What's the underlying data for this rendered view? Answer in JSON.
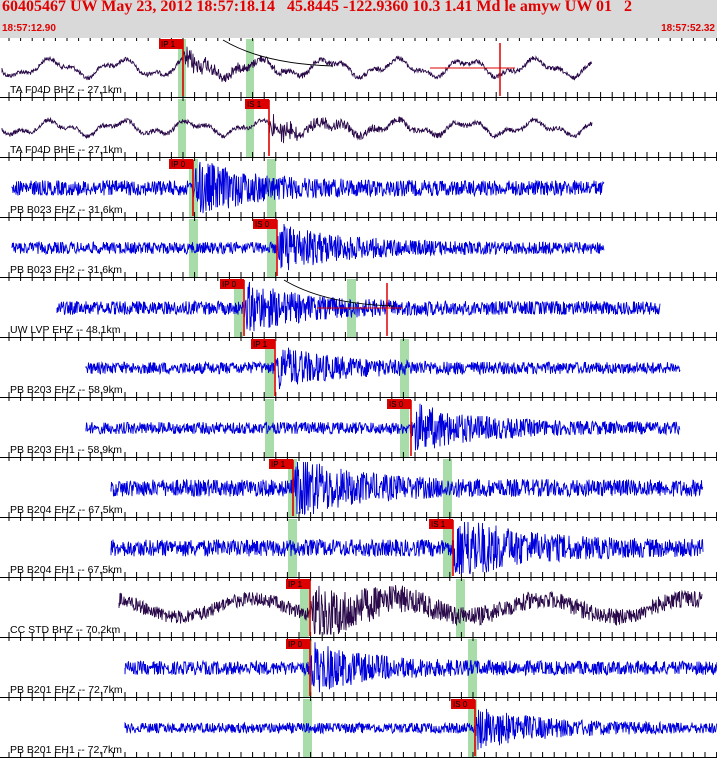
{
  "header": {
    "title": "60405467 UW May 23, 2012 18:57:18.14   45.8445 -122.9360 10.3 1.41 Md le amyw UW 01   2",
    "start_time": "18:57:12.90",
    "end_time": "18:57:52.32"
  },
  "colors": {
    "header_bg": "#d9d9d9",
    "header_text": "#e00000",
    "waveform_blue": "#0000dd",
    "waveform_dark": "#2a0a4a",
    "pick_marker": "#dd0000",
    "phase_window": "#a8dca8",
    "gridline": "#000000"
  },
  "chart_data": {
    "type": "seismogram",
    "time_axis": {
      "start": "18:57:12.90",
      "end": "18:57:52.32",
      "tick_interval_s": 0.5
    },
    "traces": [
      {
        "label": "TA F04D BHZ -- 27,1km",
        "color": "dark",
        "pick": "IP 1",
        "pick_type": "P",
        "has_coda_curve": true
      },
      {
        "label": "TA F04D BHE -- 27,1km",
        "color": "dark",
        "pick": "IS 1",
        "pick_type": "S"
      },
      {
        "label": "PB B023 EHZ -- 31,6km",
        "color": "blue",
        "pick": "IP 0",
        "pick_type": "P"
      },
      {
        "label": "PB B023 EH2 -- 31,6km",
        "color": "blue",
        "pick": "IS 0",
        "pick_type": "S"
      },
      {
        "label": "UW LVP EHZ -- 48,1km",
        "color": "blue",
        "pick": "IP 0",
        "pick_type": "P",
        "has_coda_curve": true
      },
      {
        "label": "PB B203 EHZ -- 58,9km",
        "color": "blue",
        "pick": "IP 1",
        "pick_type": "P"
      },
      {
        "label": "PB B203 EH1 -- 58,9km",
        "color": "blue",
        "pick": "IS 0",
        "pick_type": "S"
      },
      {
        "label": "PB B204 EHZ -- 67,5km",
        "color": "blue",
        "pick": "IP 1",
        "pick_type": "P"
      },
      {
        "label": "PB B204 EH1 -- 67,5km",
        "color": "blue",
        "pick": "IS 1",
        "pick_type": "S"
      },
      {
        "label": "CC STD BHZ -- 70,2km",
        "color": "dark",
        "pick": "IP 1",
        "pick_type": "P"
      },
      {
        "label": "PB B201 EHZ -- 72,7km",
        "color": "blue",
        "pick": "IP 0",
        "pick_type": "P"
      },
      {
        "label": "PB B201 EH1 -- 72,7km",
        "color": "blue",
        "pick": "IS 0",
        "pick_type": "S"
      }
    ]
  }
}
